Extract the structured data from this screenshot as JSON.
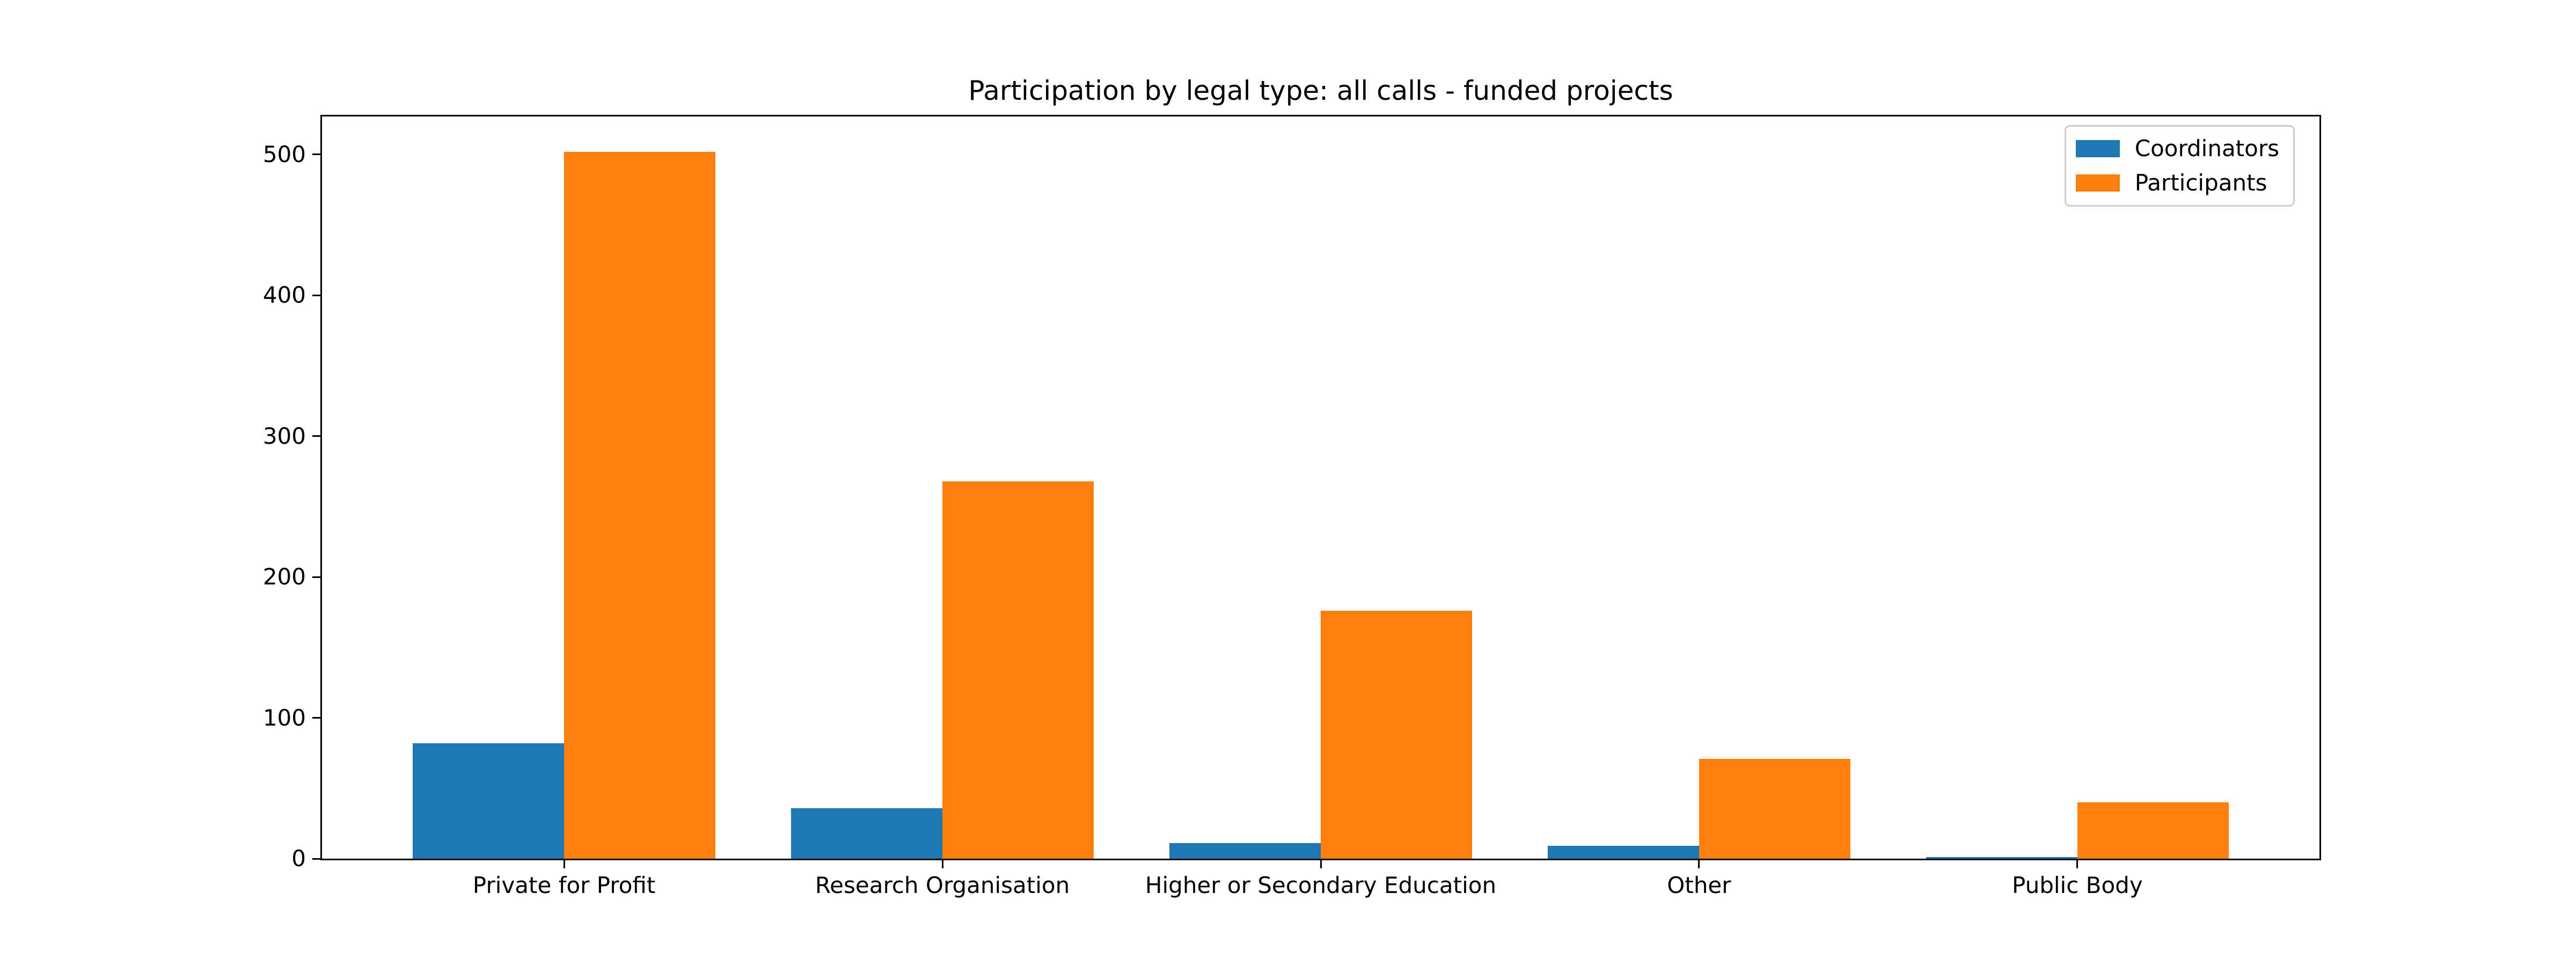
{
  "chart_data": {
    "type": "bar",
    "title": "Participation by legal type: all calls - funded projects",
    "categories": [
      "Private for Profit",
      "Research Organisation",
      "Higher or Secondary Education",
      "Other",
      "Public Body"
    ],
    "series": [
      {
        "name": "Coordinators",
        "color": "#1f77b4",
        "values": [
          82,
          36,
          11,
          9,
          1
        ]
      },
      {
        "name": "Participants",
        "color": "#ff7f0e",
        "values": [
          502,
          268,
          176,
          71,
          40
        ]
      }
    ],
    "xlabel": "",
    "ylabel": "",
    "ylim": [
      0,
      527
    ],
    "yticks": [
      0,
      100,
      200,
      300,
      400,
      500
    ],
    "grid": false,
    "legend_position": "upper right",
    "background_color": "#ffffff",
    "spine_color": "#000000",
    "text_color": "#000000"
  }
}
